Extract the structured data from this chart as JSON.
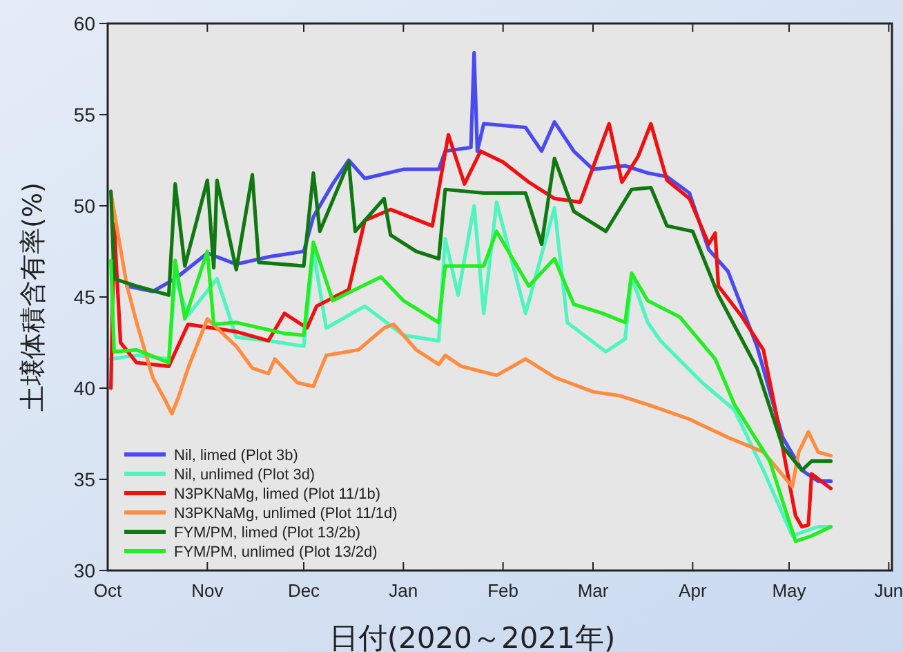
{
  "chart_data": {
    "type": "line",
    "ylabel": "土壌体積含有率(%)",
    "xlabel": "日付(2020～2021年)",
    "xlim": [
      "2020-10-01",
      "2021-06-02"
    ],
    "ylim": [
      30,
      60
    ],
    "yticks": [
      30,
      35,
      40,
      45,
      50,
      55,
      60
    ],
    "xticks": [
      {
        "value": "2020-10-01",
        "label": "Oct"
      },
      {
        "value": "2020-11-01",
        "label": "Nov"
      },
      {
        "value": "2020-12-01",
        "label": "Dec"
      },
      {
        "value": "2021-01-01",
        "label": "Jan"
      },
      {
        "value": "2021-02-01",
        "label": "Feb"
      },
      {
        "value": "2021-03-01",
        "label": "Mar"
      },
      {
        "value": "2021-04-01",
        "label": "Apr"
      },
      {
        "value": "2021-05-01",
        "label": "May"
      },
      {
        "value": "2021-06-01",
        "label": "Jun"
      }
    ],
    "grid": false,
    "legend": "bottom left",
    "line_style": "solid",
    "marker": "none",
    "series": [
      {
        "name": "Nil, limed (Plot 3b)",
        "color": "#4a4af0",
        "x": [
          "2020-10-07",
          "2020-10-15",
          "2020-10-22",
          "2020-11-01",
          "2020-11-10",
          "2020-11-20",
          "2020-12-01",
          "2020-12-04",
          "2020-12-10",
          "2020-12-15",
          "2020-12-20",
          "2021-01-01",
          "2021-01-12",
          "2021-01-14",
          "2021-01-22",
          "2021-01-23",
          "2021-01-24",
          "2021-01-26",
          "2021-02-08",
          "2021-02-13",
          "2021-02-17",
          "2021-02-23",
          "2021-03-01",
          "2021-03-11",
          "2021-03-18",
          "2021-03-24",
          "2021-03-31",
          "2021-04-06",
          "2021-04-12",
          "2021-04-21",
          "2021-04-29",
          "2021-05-05",
          "2021-05-10",
          "2021-05-14"
        ],
        "values": [
          45.6,
          45.3,
          46,
          47.4,
          46.8,
          47.2,
          47.5,
          49.4,
          51.2,
          52.5,
          51.5,
          52,
          52,
          53,
          53.2,
          58.4,
          53,
          54.5,
          54.3,
          53,
          54.6,
          53,
          52,
          52.2,
          51.8,
          51.6,
          50.7,
          47.6,
          46.4,
          42.3,
          37.3,
          35.5,
          34.9,
          34.9
        ]
      },
      {
        "name": "Nil, unlimed (Plot 3d)",
        "color": "#4ef5c0",
        "x": [
          "2020-10-02",
          "2020-10-10",
          "2020-10-20",
          "2020-10-22",
          "2020-10-26",
          "2020-11-04",
          "2020-11-10",
          "2020-11-20",
          "2020-12-01",
          "2020-12-04",
          "2020-12-08",
          "2020-12-20",
          "2021-01-01",
          "2021-01-12",
          "2021-01-14",
          "2021-01-18",
          "2021-01-23",
          "2021-01-26",
          "2021-01-30",
          "2021-02-08",
          "2021-02-17",
          "2021-02-21",
          "2021-03-05",
          "2021-03-11",
          "2021-03-13",
          "2021-03-18",
          "2021-03-22",
          "2021-04-04",
          "2021-04-14",
          "2021-04-23",
          "2021-05-02",
          "2021-05-10",
          "2021-05-14"
        ],
        "values": [
          41.6,
          41.8,
          41.6,
          46,
          44,
          46,
          42.8,
          42.6,
          42.3,
          47.5,
          43.3,
          44.5,
          42.9,
          42.6,
          48.2,
          45.1,
          50,
          44.1,
          50.2,
          44.1,
          49.9,
          43.6,
          42,
          42.7,
          46.1,
          43.6,
          42.6,
          40.3,
          38.8,
          35.5,
          31.9,
          32.4,
          32.4
        ]
      },
      {
        "name": "N3PKNaMg, limed (Plot 11/1b)",
        "color": "#f01010",
        "x": [
          "2020-10-02",
          "2020-10-03",
          "2020-10-05",
          "2020-10-10",
          "2020-10-20",
          "2020-10-26",
          "2020-11-10",
          "2020-11-20",
          "2020-11-25",
          "2020-12-02",
          "2020-12-05",
          "2020-12-15",
          "2020-12-20",
          "2020-12-28",
          "2021-01-10",
          "2021-01-15",
          "2021-01-20",
          "2021-01-25",
          "2021-02-01",
          "2021-02-09",
          "2021-02-17",
          "2021-02-25",
          "2021-03-06",
          "2021-03-10",
          "2021-03-15",
          "2021-03-19",
          "2021-03-24",
          "2021-03-31",
          "2021-04-06",
          "2021-04-08",
          "2021-04-09",
          "2021-04-16",
          "2021-04-23",
          "2021-04-27",
          "2021-05-03",
          "2021-05-05",
          "2021-05-07",
          "2021-05-08",
          "2021-05-14"
        ],
        "values": [
          40,
          49,
          42.5,
          41.4,
          41.2,
          43.5,
          43.1,
          42.6,
          44.1,
          43.3,
          44.5,
          45.4,
          49.2,
          49.8,
          48.9,
          53.9,
          51.2,
          53,
          52.4,
          51.3,
          50.4,
          50.2,
          54.5,
          51.3,
          52.7,
          54.5,
          51.4,
          50.4,
          47.9,
          48.5,
          45.6,
          44,
          42.1,
          38.6,
          33,
          32.4,
          32.5,
          35.3,
          34.5
        ]
      },
      {
        "name": "N3PKNaMg, unlimed (Plot 11/1d)",
        "color": "#ff8c40",
        "x": [
          "2020-10-02",
          "2020-10-07",
          "2020-10-10",
          "2020-10-15",
          "2020-10-19",
          "2020-10-21",
          "2020-10-23",
          "2020-10-26",
          "2020-11-01",
          "2020-11-10",
          "2020-11-15",
          "2020-11-20",
          "2020-11-22",
          "2020-11-29",
          "2020-12-04",
          "2020-12-08",
          "2020-12-18",
          "2020-12-26",
          "2020-12-29",
          "2021-01-05",
          "2021-01-12",
          "2021-01-14",
          "2021-01-19",
          "2021-01-30",
          "2021-02-08",
          "2021-02-17",
          "2021-03-01",
          "2021-03-09",
          "2021-03-18",
          "2021-03-31",
          "2021-04-12",
          "2021-04-23",
          "2021-05-02",
          "2021-05-04",
          "2021-05-07",
          "2021-05-10",
          "2021-05-14"
        ],
        "values": [
          50.7,
          45.6,
          43.6,
          40.6,
          39.3,
          38.6,
          39.5,
          41.1,
          43.8,
          42.3,
          41.1,
          40.8,
          41.6,
          40.3,
          40.1,
          41.8,
          42.1,
          43.3,
          43.5,
          42.1,
          41.3,
          41.8,
          41.2,
          40.7,
          41.6,
          40.6,
          39.8,
          39.6,
          39.1,
          38.3,
          37.3,
          36.5,
          34.6,
          36.5,
          37.6,
          36.5,
          36.3
        ]
      },
      {
        "name": "FYM/PM, limed (Plot 13/2b)",
        "color": "#107810",
        "x": [
          "2020-10-02",
          "2020-10-03",
          "2020-10-10",
          "2020-10-20",
          "2020-10-22",
          "2020-10-25",
          "2020-11-01",
          "2020-11-03",
          "2020-11-04",
          "2020-11-10",
          "2020-11-15",
          "2020-11-17",
          "2020-12-01",
          "2020-12-04",
          "2020-12-06",
          "2020-12-15",
          "2020-12-17",
          "2020-12-26",
          "2020-12-28",
          "2021-01-05",
          "2021-01-12",
          "2021-01-14",
          "2021-01-26",
          "2021-02-08",
          "2021-02-13",
          "2021-02-17",
          "2021-02-23",
          "2021-03-05",
          "2021-03-13",
          "2021-03-19",
          "2021-03-24",
          "2021-04-01",
          "2021-04-09",
          "2021-04-21",
          "2021-04-29",
          "2021-05-05",
          "2021-05-08",
          "2021-05-14"
        ],
        "values": [
          50.8,
          46,
          45.6,
          45.1,
          51.2,
          46.7,
          51.4,
          46.6,
          51.4,
          46.5,
          51.7,
          46.9,
          46.7,
          51.8,
          48.6,
          52.4,
          48.6,
          50.4,
          48.4,
          47.5,
          47.1,
          50.9,
          50.7,
          50.7,
          47.9,
          52.6,
          49.7,
          48.6,
          50.9,
          51,
          48.9,
          48.6,
          45.1,
          41.1,
          36.8,
          35.5,
          36,
          36
        ]
      },
      {
        "name": "FYM/PM, unlimed (Plot 13/2d)",
        "color": "#22ee22",
        "x": [
          "2020-10-02",
          "2020-10-03",
          "2020-10-10",
          "2020-10-20",
          "2020-10-22",
          "2020-10-25",
          "2020-11-01",
          "2020-11-03",
          "2020-11-10",
          "2020-11-25",
          "2020-12-01",
          "2020-12-04",
          "2020-12-10",
          "2020-12-25",
          "2021-01-01",
          "2021-01-12",
          "2021-01-14",
          "2021-01-26",
          "2021-01-30",
          "2021-02-09",
          "2021-02-17",
          "2021-02-23",
          "2021-03-04",
          "2021-03-11",
          "2021-03-13",
          "2021-03-18",
          "2021-03-28",
          "2021-04-08",
          "2021-04-14",
          "2021-04-25",
          "2021-05-03",
          "2021-05-08",
          "2021-05-14"
        ],
        "values": [
          47,
          42,
          42.1,
          41.4,
          47,
          43.8,
          47.5,
          43.5,
          43.6,
          43,
          42.9,
          48,
          44.8,
          46.1,
          44.8,
          43.6,
          46.7,
          46.7,
          48.6,
          45.6,
          47.1,
          44.6,
          44.1,
          43.6,
          46.3,
          44.8,
          43.9,
          41.6,
          39.1,
          36,
          31.6,
          31.9,
          32.4
        ]
      }
    ]
  }
}
